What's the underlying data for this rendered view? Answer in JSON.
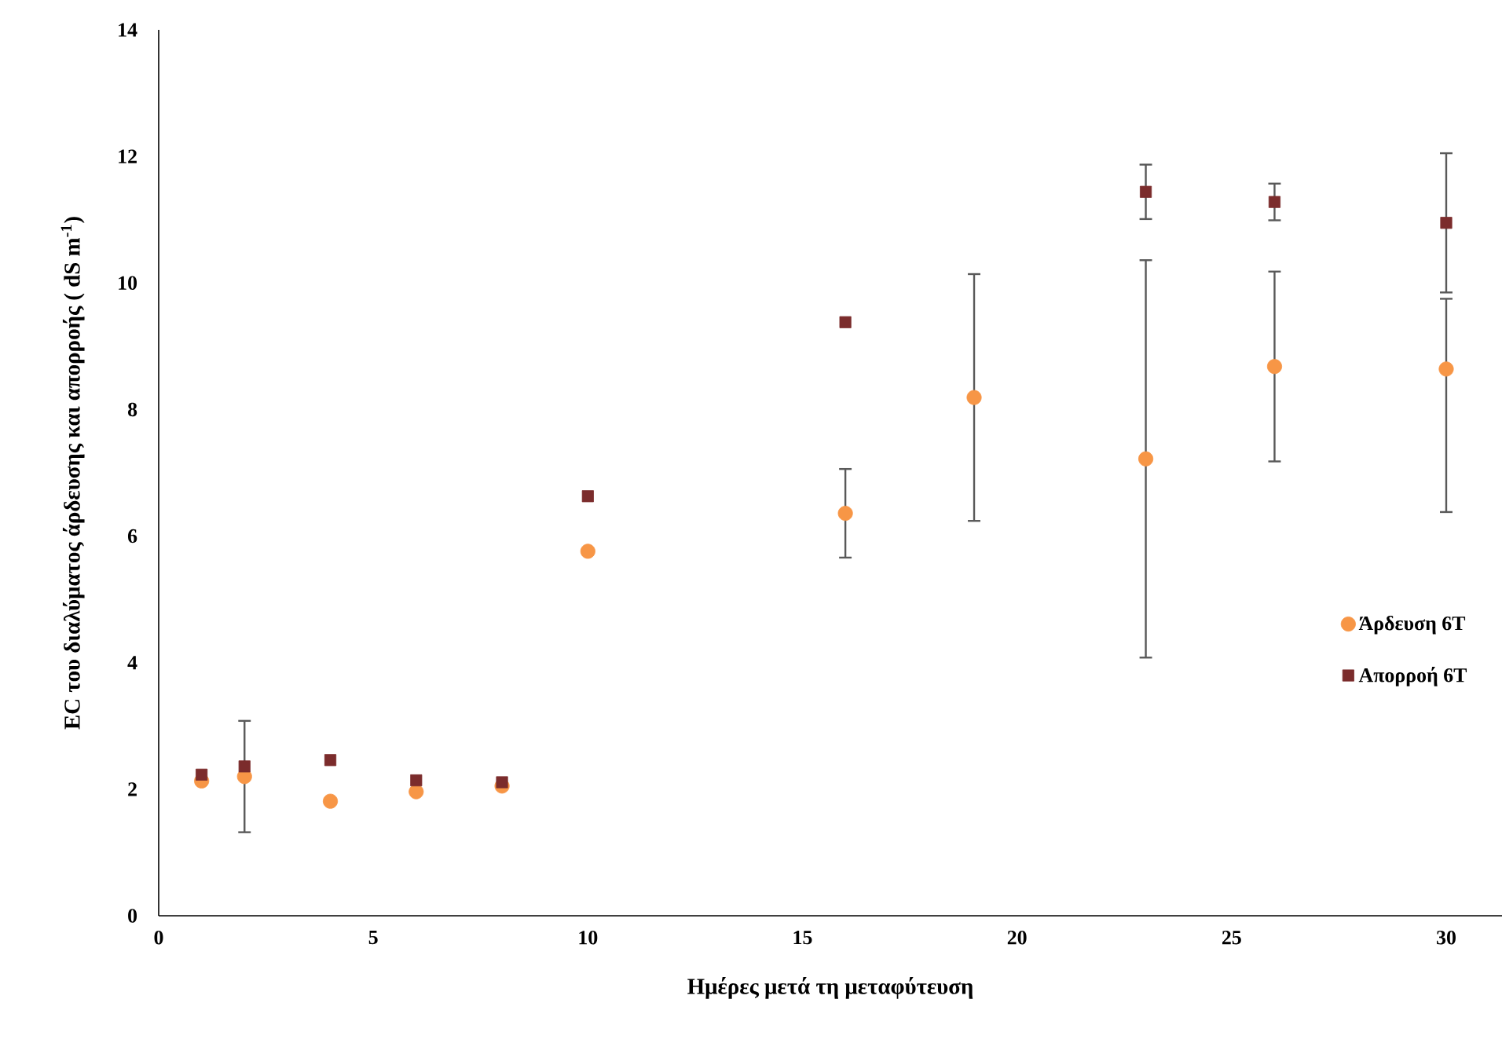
{
  "chart_data": {
    "type": "scatter",
    "xlabel": "Ημέρες μετά τη μεταφύτευση",
    "ylabel": "EC του διαλύματος άρδευσης και απορροής ( dS m$^{-1}$)",
    "x": [
      1,
      2,
      4,
      6,
      8,
      10,
      16,
      19,
      23,
      26,
      30
    ],
    "series": [
      {
        "name": "Άρδευση 6T",
        "color": "#f79646",
        "marker": "circle",
        "values": [
          2.13,
          2.2,
          1.81,
          1.96,
          2.05,
          5.76,
          6.36,
          8.19,
          7.22,
          8.68,
          8.64
        ],
        "errors": [
          null,
          0.88,
          null,
          null,
          null,
          null,
          0.7,
          1.95,
          3.14,
          1.5,
          [
            6.38,
            9.75
          ]
        ]
      },
      {
        "name": "Απορροή 6T",
        "color": "#7b2c2c",
        "marker": "square",
        "values": [
          2.23,
          2.36,
          2.46,
          2.14,
          2.11,
          6.63,
          9.38,
          null,
          11.44,
          11.28,
          10.95
        ],
        "errors": [
          null,
          null,
          null,
          null,
          null,
          null,
          null,
          null,
          0.43,
          0.29,
          1.1
        ]
      }
    ],
    "xlim": [
      0,
      31.3
    ],
    "ylim": [
      0,
      14
    ],
    "xticks": [
      0,
      5,
      10,
      15,
      20,
      25,
      30
    ],
    "yticks": [
      0,
      2,
      4,
      6,
      8,
      10,
      12,
      14
    ],
    "grid": false,
    "legend": "right"
  }
}
